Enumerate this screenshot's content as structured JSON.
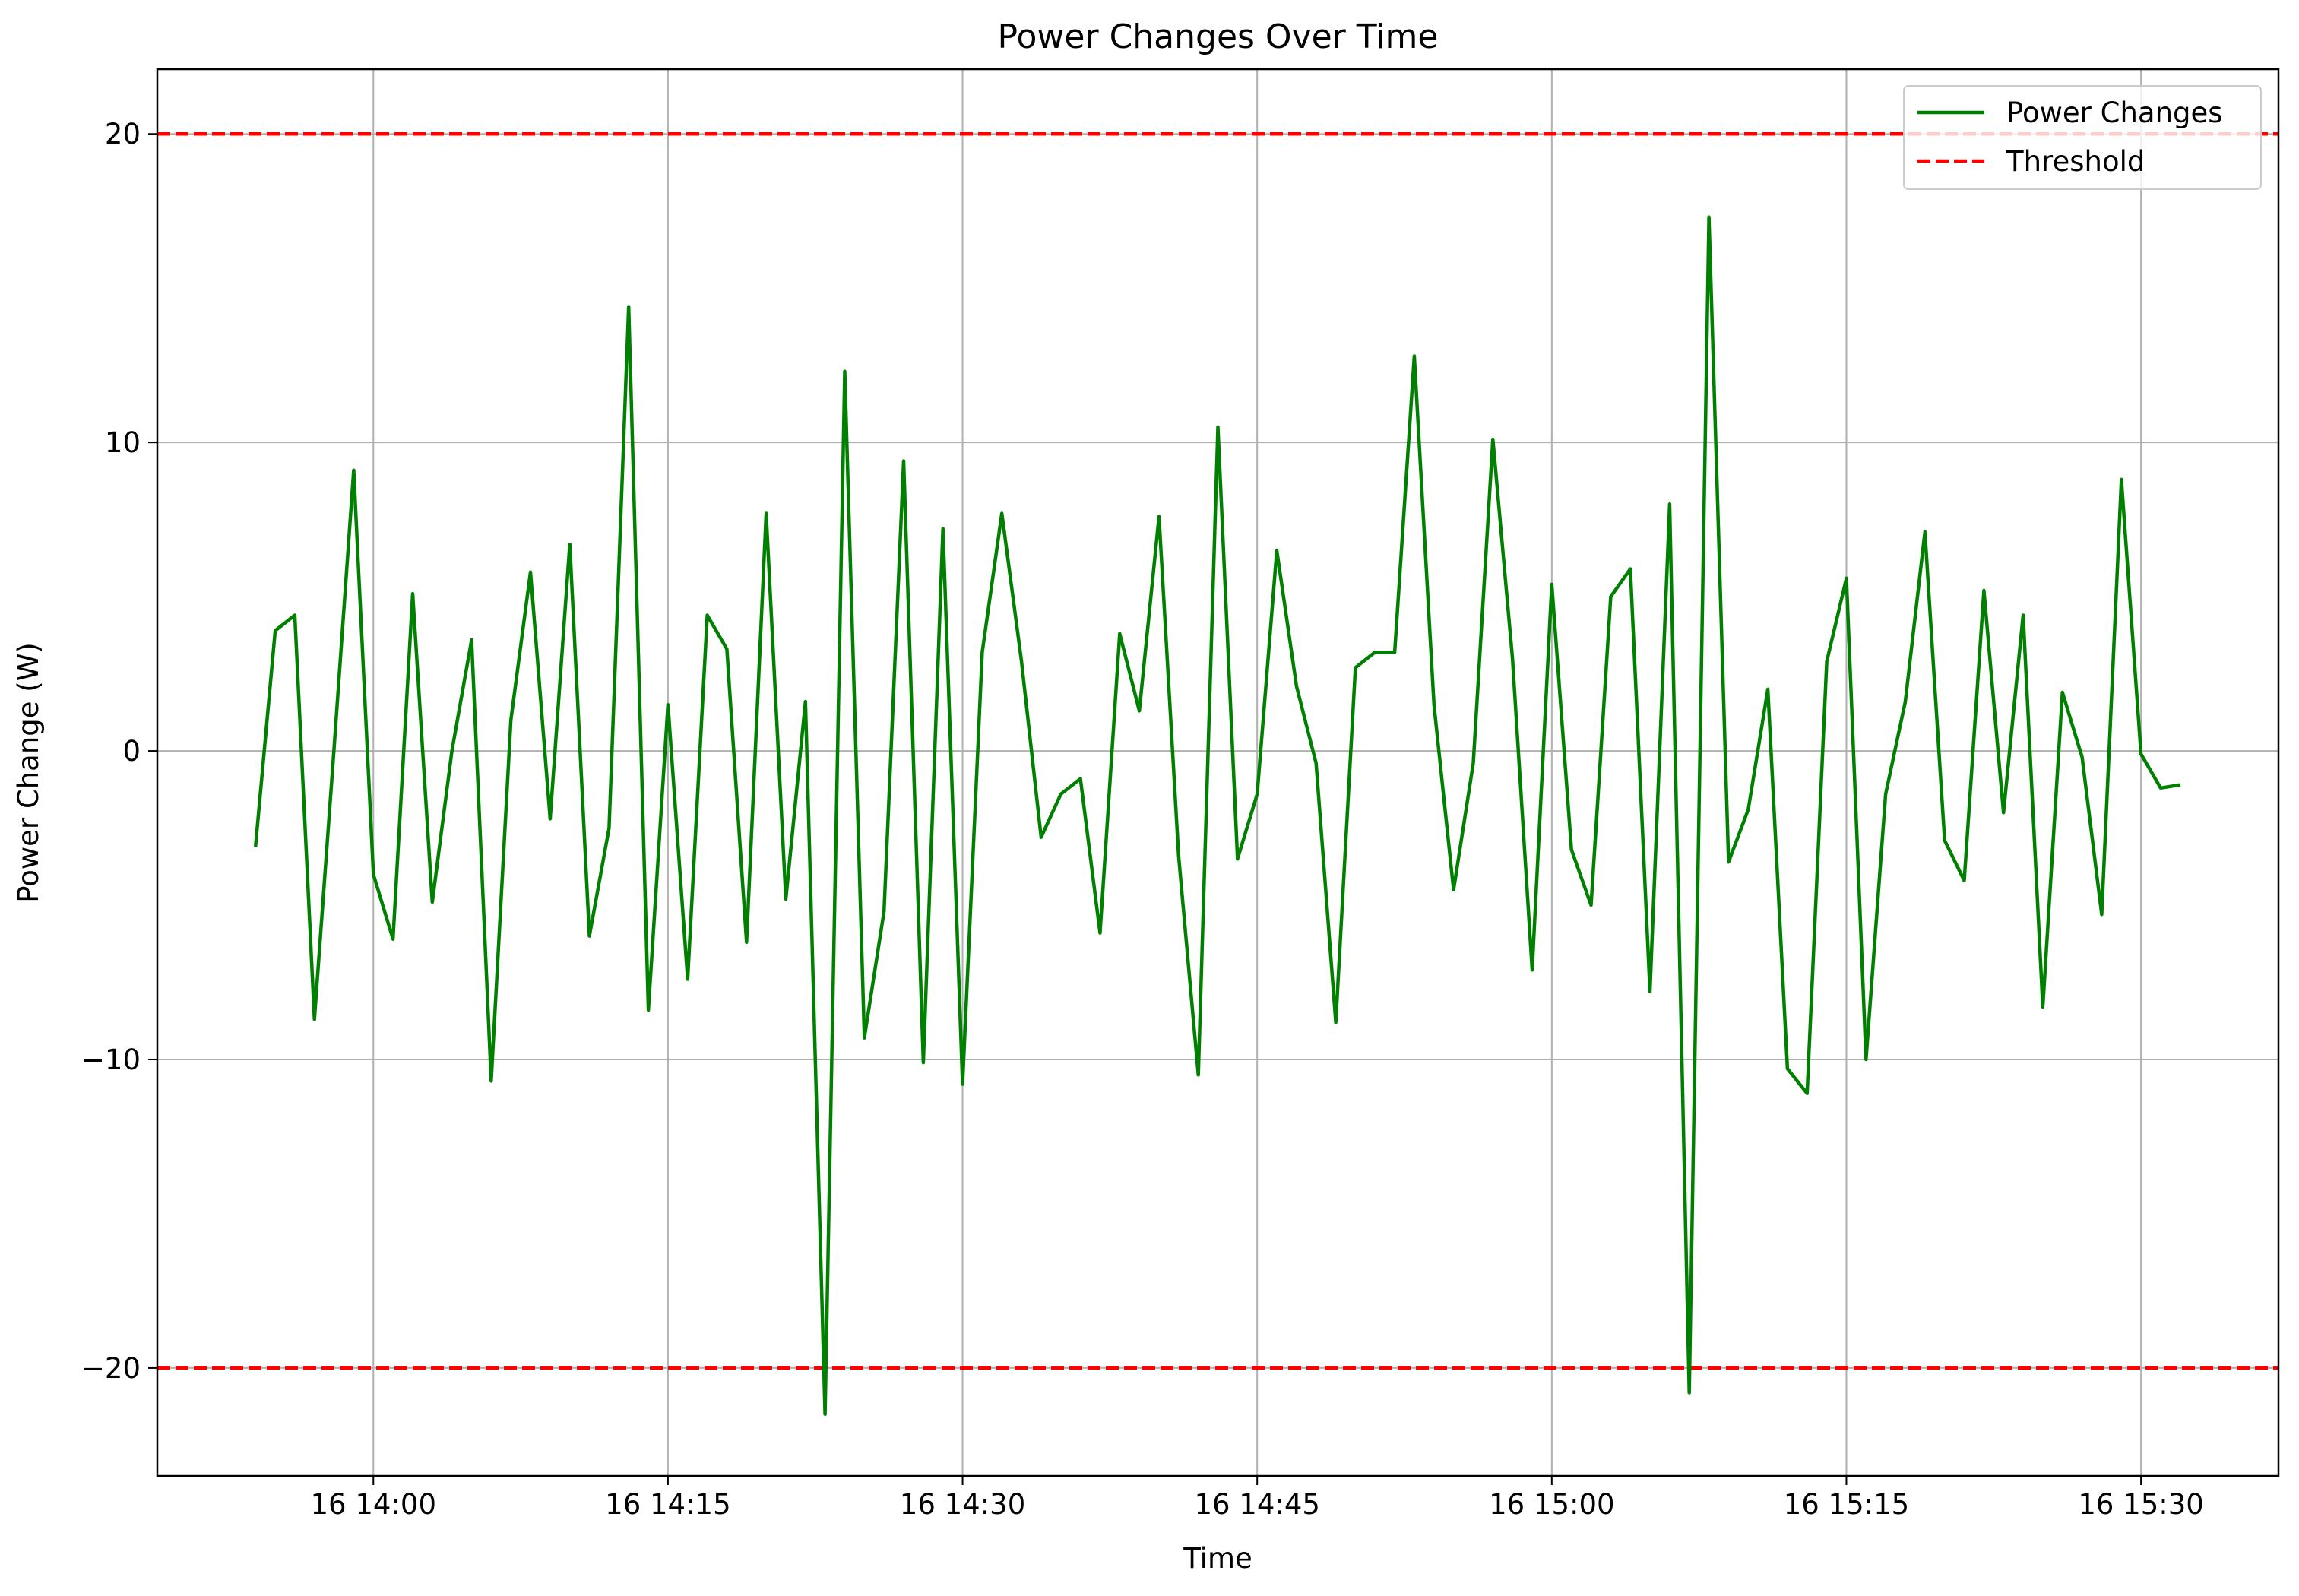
{
  "chart_data": {
    "type": "line",
    "title": "Power Changes Over Time",
    "xlabel": "Time",
    "ylabel": "Power Change (W)",
    "x_tick_labels": [
      "16 14:00",
      "16 14:15",
      "16 14:30",
      "16 14:45",
      "16 15:00",
      "16 15:15",
      "16 15:30"
    ],
    "x_tick_minutes": [
      0,
      15,
      30,
      45,
      60,
      75,
      90
    ],
    "x_start": "16 13:54",
    "y_tick_labels": [
      "20",
      "10",
      "0",
      "−10",
      "−20"
    ],
    "y_tick_values": [
      20,
      10,
      0,
      -10,
      -20
    ],
    "xlim_minutes": [
      -11,
      97
    ],
    "ylim": [
      -23.5,
      22.1
    ],
    "grid": true,
    "legend_position": "top-right",
    "legend": [
      "Power Changes",
      "Threshold"
    ],
    "series": [
      {
        "name": "Power Changes",
        "color": "#008000",
        "style": "solid",
        "values": [
          -3.1,
          3.9,
          4.4,
          -8.7,
          0.1,
          9.1,
          -4.0,
          -6.1,
          5.1,
          -4.9,
          0.0,
          3.6,
          -10.7,
          1.0,
          5.8,
          -2.2,
          6.7,
          -6.0,
          -2.5,
          14.4,
          -8.4,
          1.5,
          -7.4,
          4.4,
          3.3,
          -6.2,
          7.7,
          -4.8,
          1.6,
          -21.5,
          12.3,
          -9.3,
          -5.2,
          9.4,
          -10.1,
          7.2,
          -10.8,
          3.2,
          7.7,
          2.9,
          -2.8,
          -1.4,
          -0.9,
          -5.9,
          3.8,
          1.3,
          7.6,
          -3.4,
          -10.5,
          10.5,
          -3.5,
          -1.4,
          6.5,
          2.1,
          -0.4,
          -8.8,
          2.7,
          3.2,
          3.2,
          12.8,
          1.5,
          -4.5,
          -0.4,
          10.1,
          3.0,
          -7.1,
          5.4,
          -3.2,
          -5.0,
          5.0,
          5.9,
          -7.8,
          8.0,
          -20.8,
          17.3,
          -3.6,
          -1.9,
          2.0,
          -10.3,
          -11.1,
          2.9,
          5.6,
          -10.0,
          -1.4,
          1.6,
          7.1,
          -2.9,
          -4.2,
          5.2,
          -2.0,
          4.4,
          -8.3,
          1.9,
          -0.2,
          -5.3,
          8.8,
          -0.1,
          -1.2,
          -1.1
        ]
      },
      {
        "name": "Threshold",
        "color": "#ff0000",
        "style": "dashed",
        "values": [
          20,
          -20
        ]
      }
    ]
  }
}
